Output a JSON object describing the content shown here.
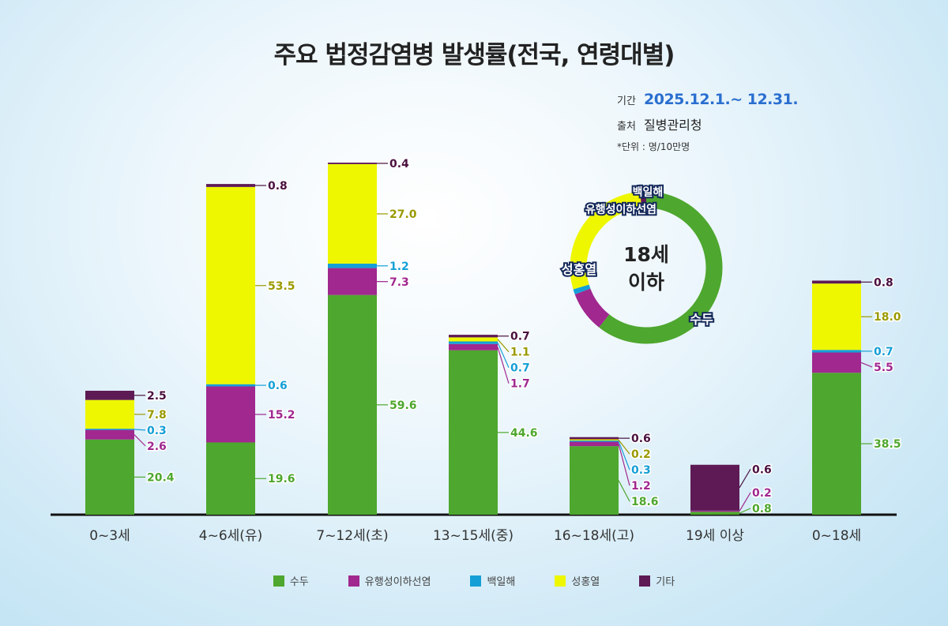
{
  "chart_data": {
    "type": "bar",
    "stacked": true,
    "title": "주요 법정감염병 발생률(전국, 연령대별)",
    "period_label": "기간",
    "period": "2025.12.1.~ 12.31.",
    "source_label": "출처",
    "source": "질병관리청",
    "unit": "*단위 : 명/10만명",
    "categories": [
      "0~3세",
      "4~6세(유)",
      "7~12세(초)",
      "13~15세(중)",
      "16~18세(고)",
      "19세 이상",
      "0~18세"
    ],
    "series": [
      {
        "name": "수두",
        "color": "#4ea72e",
        "values": [
          20.4,
          19.6,
          59.6,
          44.6,
          18.6,
          0.8,
          38.5
        ]
      },
      {
        "name": "유행성이하선염",
        "color": "#a0288f",
        "values": [
          2.6,
          15.2,
          7.3,
          1.7,
          1.2,
          0.2,
          5.5
        ]
      },
      {
        "name": "백일해",
        "color": "#159fd6",
        "values": [
          0.3,
          0.6,
          1.2,
          0.7,
          0.3,
          null,
          0.7
        ]
      },
      {
        "name": "성홍열",
        "color": "#eef700",
        "values": [
          7.8,
          53.5,
          27.0,
          1.1,
          0.2,
          null,
          18.0
        ]
      },
      {
        "name": "기타",
        "color": "#5e1a55",
        "values": [
          2.5,
          0.8,
          0.4,
          0.7,
          0.6,
          0.6,
          0.8
        ]
      }
    ],
    "label_colors": [
      "#4ea72e",
      "#a0288f",
      "#159fd6",
      "#9a9a00",
      "#4a1040"
    ],
    "donut": {
      "title_line1": "18세",
      "title_line2": "이하",
      "category": "0~18세",
      "labels": [
        "수두",
        "유행성이하선염",
        "백일해",
        "성홍열"
      ]
    }
  }
}
